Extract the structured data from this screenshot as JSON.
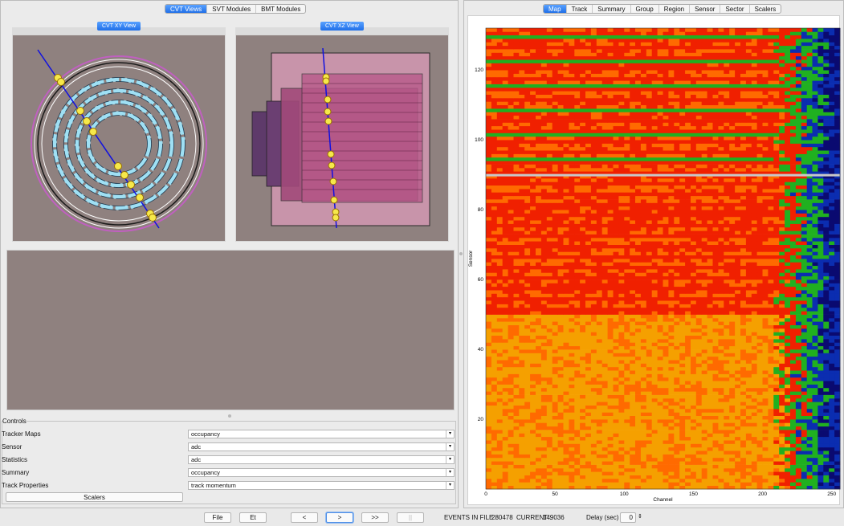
{
  "left_tabs": {
    "items": [
      "CVT Views",
      "SVT Modules",
      "BMT Modules"
    ],
    "active": 0
  },
  "views": {
    "xy_title": "CVT XY View",
    "xz_title": "CVT XZ View"
  },
  "controls": {
    "title": "Controls",
    "rows": [
      {
        "label": "Tracker Maps",
        "value": "occupancy"
      },
      {
        "label": "Sensor",
        "value": "adc"
      },
      {
        "label": "Statistics",
        "value": "adc"
      },
      {
        "label": "Summary",
        "value": "occupancy"
      },
      {
        "label": "Track Properties",
        "value": "track momentum"
      }
    ],
    "scalers_button": "Scalers"
  },
  "right_tabs": {
    "items": [
      "Map",
      "Track",
      "Summary",
      "Group",
      "Region",
      "Sensor",
      "Sector",
      "Scalers"
    ],
    "active": 0
  },
  "chart_data": {
    "type": "heatmap",
    "xlabel": "Channel",
    "ylabel": "Sensor",
    "xlim": [
      0,
      256
    ],
    "ylim": [
      0,
      132
    ],
    "x_ticks": [
      0,
      50,
      100,
      150,
      200,
      250
    ],
    "y_ticks": [
      20,
      40,
      60,
      80,
      100,
      120
    ],
    "gap_at_sensor": 90,
    "palette": [
      "#f5a000",
      "#ff6a00",
      "#f02000",
      "#20b020",
      "#0b2db0",
      "#0a0a70"
    ]
  },
  "bottom_bar": {
    "file_button": "File",
    "et_button": "Et",
    "prev_button": "<",
    "next_button": ">",
    "skip_button": ">>",
    "pause_button": "||",
    "events_label": "EVENTS IN FILE :",
    "events_value": "280478",
    "current_label": "CURRENT :",
    "current_value": "149036",
    "delay_label": "Delay (sec)",
    "delay_value": "0"
  }
}
